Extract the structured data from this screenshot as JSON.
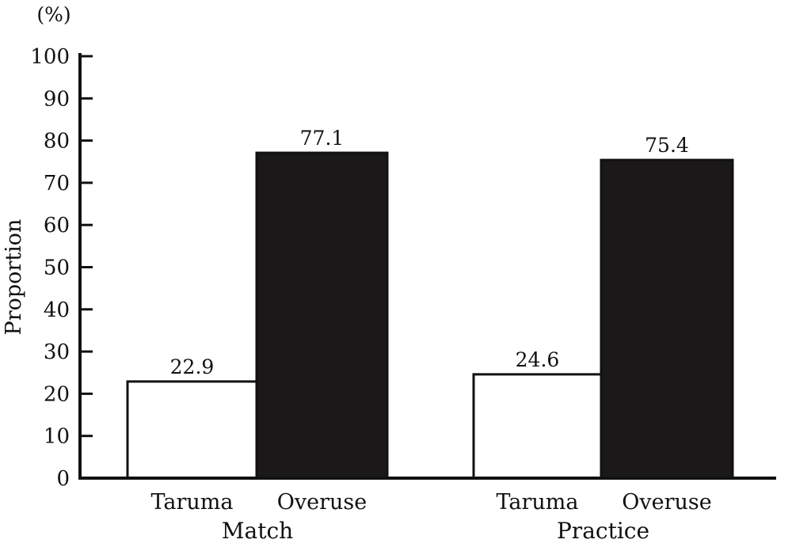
{
  "chart_data": {
    "type": "bar",
    "unit_label": "(%)",
    "ylabel": "Proportion",
    "ylim": [
      0,
      100
    ],
    "yticks": [
      0,
      10,
      20,
      30,
      40,
      50,
      60,
      70,
      80,
      90,
      100
    ],
    "groups": [
      {
        "label": "Match",
        "bars": [
          {
            "category": "Taruma",
            "value": 22.9,
            "value_label": "22.9",
            "fill": "#ffffff"
          },
          {
            "category": "Overuse",
            "value": 77.1,
            "value_label": "77.1",
            "fill": "#1a1818"
          }
        ]
      },
      {
        "label": "Practice",
        "bars": [
          {
            "category": "Taruma",
            "value": 24.6,
            "value_label": "24.6",
            "fill": "#ffffff"
          },
          {
            "category": "Overuse",
            "value": 75.4,
            "value_label": "75.4",
            "fill": "#1a1818"
          }
        ]
      }
    ],
    "grid": false,
    "legend": "none"
  }
}
